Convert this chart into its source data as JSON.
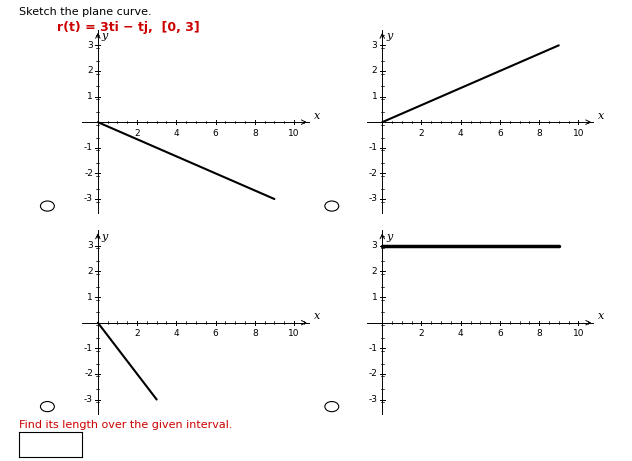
{
  "title_text": "Sketch the plane curve.",
  "equation_parts": [
    {
      "text": "r",
      "style": "bold",
      "color": "#cc0000"
    },
    {
      "text": "(t) = 3t",
      "style": "bold",
      "color": "#cc0000"
    },
    {
      "text": "i",
      "style": "bolditalic",
      "color": "#cc0000"
    },
    {
      "text": " − t",
      "style": "bold",
      "color": "#cc0000"
    },
    {
      "text": "j",
      "style": "bolditalic",
      "color": "#cc0000"
    },
    {
      "text": ",  [0, 3]",
      "style": "bold",
      "color": "#cc0000"
    }
  ],
  "equation_full": "r(t) = 3ti − tj,  [0, 3]",
  "equation_color": "#cc0000",
  "background_color": "#ffffff",
  "plots": [
    {
      "idx": 0,
      "line_x": [
        0,
        9
      ],
      "line_y": [
        0,
        -3
      ],
      "line_width": 1.5,
      "xlim": [
        -0.8,
        10.8
      ],
      "ylim": [
        -3.6,
        3.6
      ],
      "xticks": [
        2,
        4,
        6,
        8,
        10
      ],
      "yticks": [
        -3,
        -2,
        -1,
        1,
        2,
        3
      ],
      "x_origin": 0,
      "y_origin": 0
    },
    {
      "idx": 1,
      "line_x": [
        0,
        9
      ],
      "line_y": [
        0,
        3
      ],
      "line_width": 1.5,
      "xlim": [
        -0.8,
        10.8
      ],
      "ylim": [
        -3.6,
        3.6
      ],
      "xticks": [
        2,
        4,
        6,
        8,
        10
      ],
      "yticks": [
        -3,
        -2,
        -1,
        1,
        2,
        3
      ],
      "x_origin": 0,
      "y_origin": 0
    },
    {
      "idx": 2,
      "line_x": [
        0,
        3
      ],
      "line_y": [
        0,
        -3
      ],
      "line_width": 1.5,
      "xlim": [
        -0.8,
        10.8
      ],
      "ylim": [
        -3.6,
        3.6
      ],
      "xticks": [
        2,
        4,
        6,
        8,
        10
      ],
      "yticks": [
        -3,
        -2,
        -1,
        1,
        2,
        3
      ],
      "x_origin": 0,
      "y_origin": 0
    },
    {
      "idx": 3,
      "line_x": [
        0,
        9
      ],
      "line_y": [
        3,
        3
      ],
      "line_width": 2.5,
      "xlim": [
        -0.8,
        10.8
      ],
      "ylim": [
        -3.6,
        3.6
      ],
      "xticks": [
        2,
        4,
        6,
        8,
        10
      ],
      "yticks": [
        -3,
        -2,
        -1,
        1,
        2,
        3
      ],
      "x_origin": 0,
      "y_origin": 0
    }
  ],
  "footer_text": "Find its length over the given interval.",
  "footer_color": "#cc0000"
}
